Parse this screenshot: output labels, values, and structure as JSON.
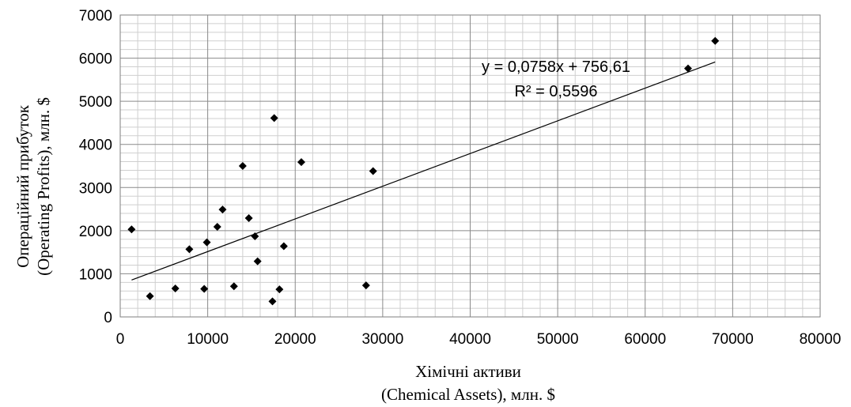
{
  "chart_data": {
    "type": "scatter",
    "title": "",
    "xlabel": [
      "Хімічні активи",
      "(Chemical Assets), млн. $"
    ],
    "ylabel": [
      "Операційний прибуток",
      "(Operating Profits), млн. $"
    ],
    "xlim": [
      0,
      80000
    ],
    "ylim": [
      0,
      7000
    ],
    "xticks": [
      0,
      10000,
      20000,
      30000,
      40000,
      50000,
      60000,
      70000,
      80000
    ],
    "yticks": [
      0,
      1000,
      2000,
      3000,
      4000,
      5000,
      6000,
      7000
    ],
    "minor_gridlines": true,
    "series": [
      {
        "marker": "diamond",
        "color": "#000000",
        "x": [
          1300,
          3400,
          6300,
          7900,
          9600,
          9900,
          11100,
          11700,
          13000,
          14000,
          14700,
          15400,
          15700,
          17400,
          17600,
          18200,
          18700,
          20700,
          28100,
          28900,
          64900,
          68000
        ],
        "y": [
          2030,
          480,
          660,
          1570,
          650,
          1730,
          2090,
          2490,
          710,
          3500,
          2290,
          1870,
          1290,
          360,
          4610,
          640,
          1640,
          3590,
          730,
          3380,
          5760,
          6400
        ]
      }
    ],
    "trendline": {
      "type": "linear",
      "slope": 0.0758,
      "intercept": 756.61,
      "x_range": [
        1300,
        68000
      ],
      "equation_label": "y = 0,0758x + 756,61",
      "r2_label": "R² = 0,5596"
    }
  }
}
